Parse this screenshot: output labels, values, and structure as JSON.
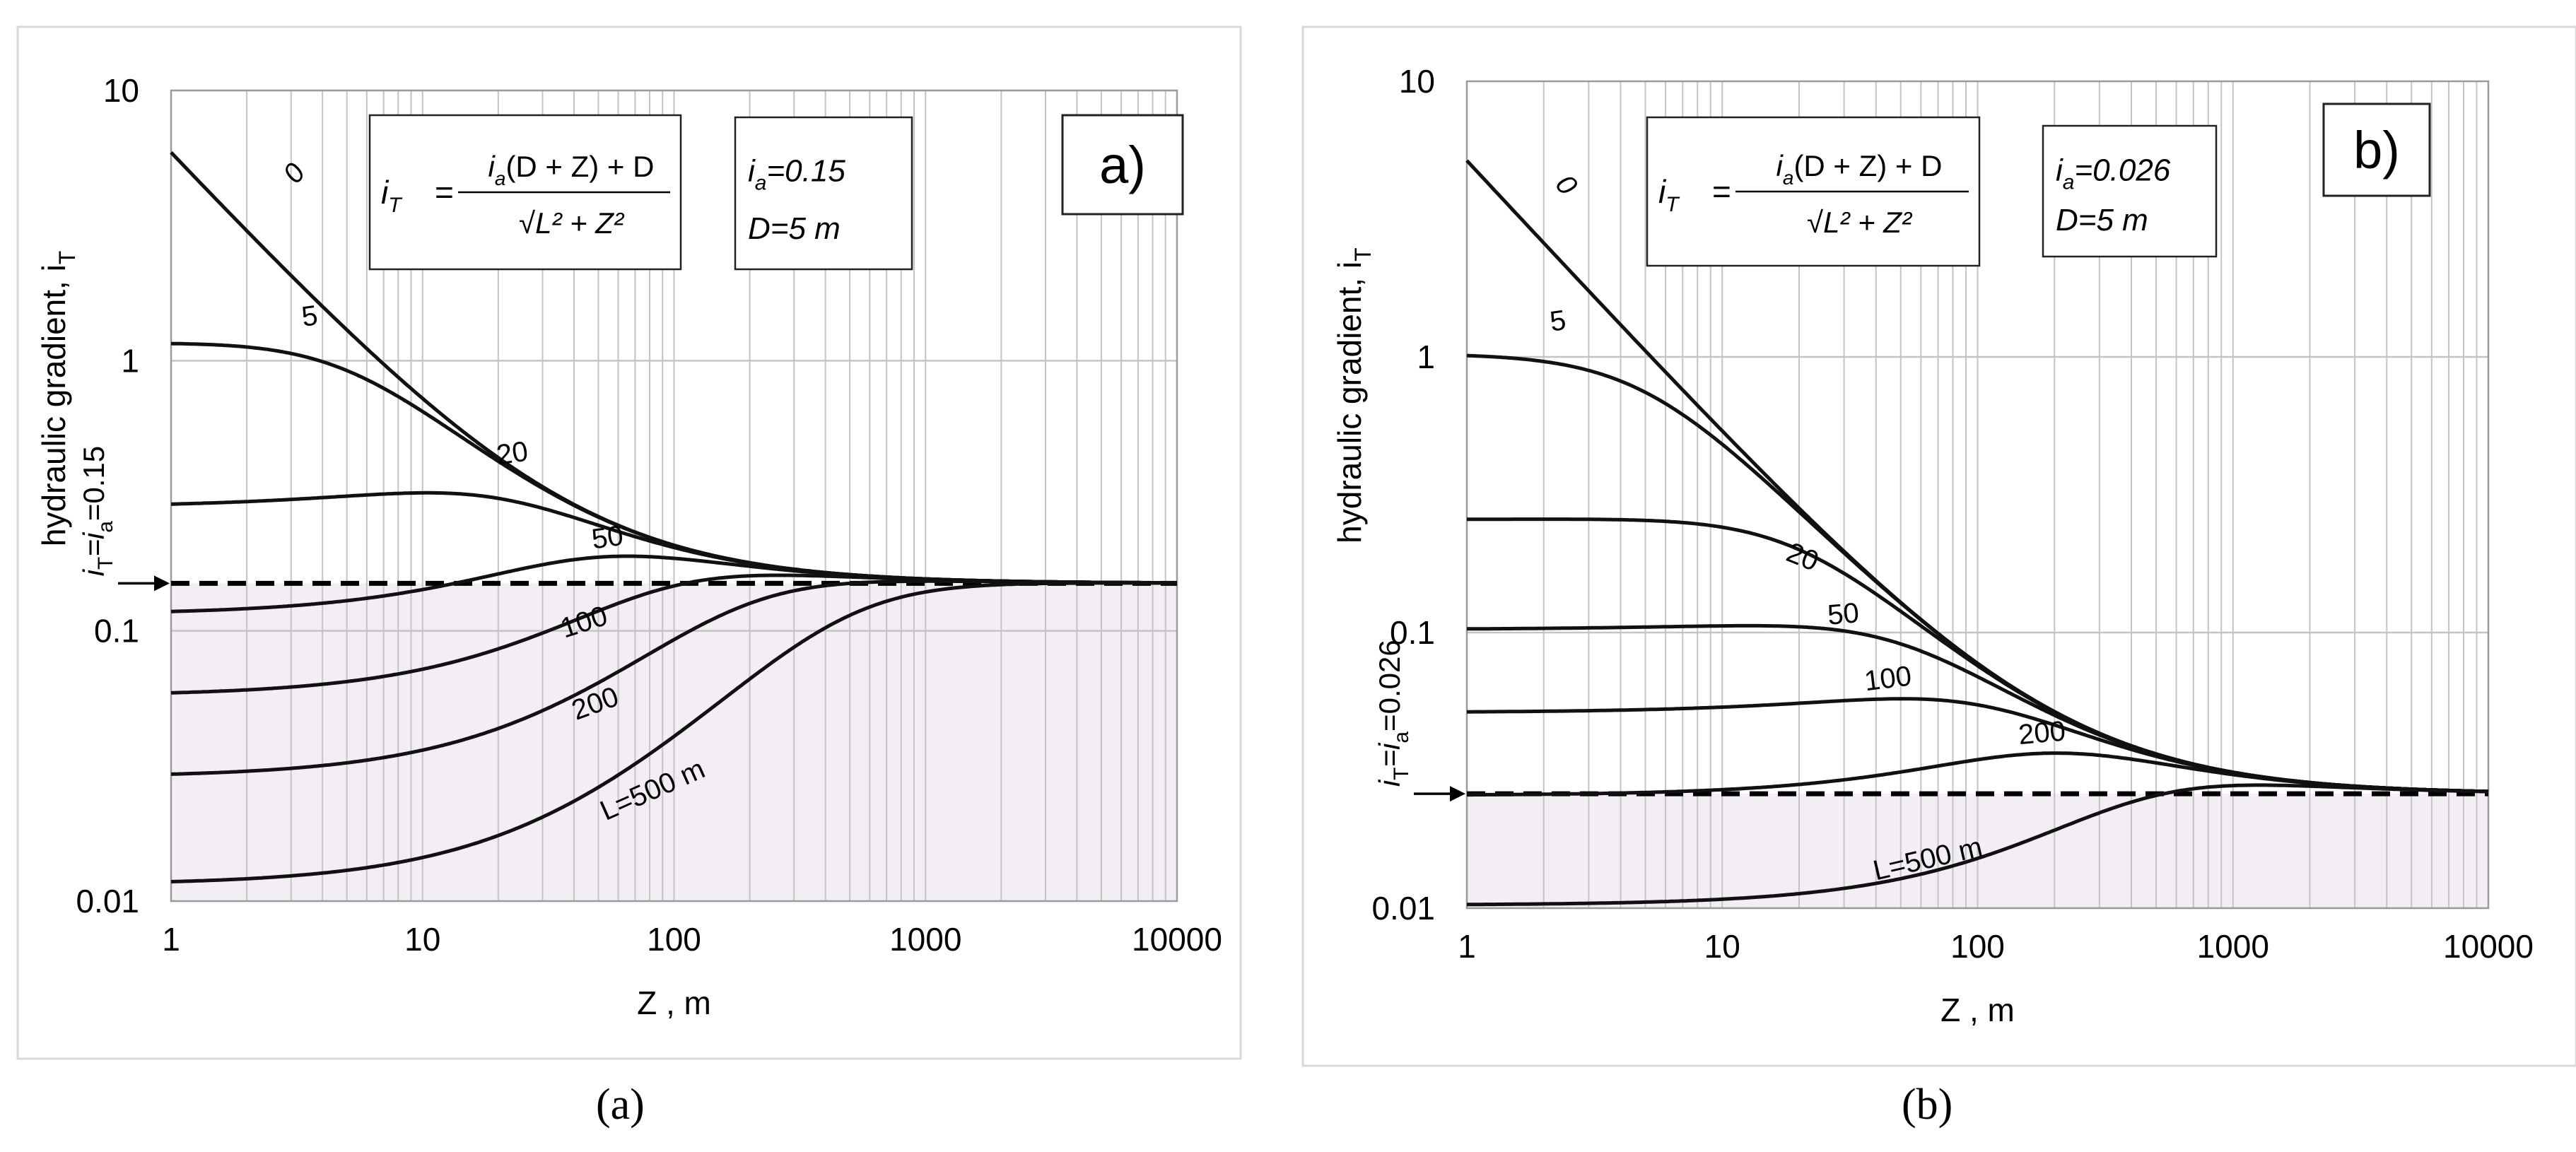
{
  "chart_data": [
    {
      "type": "line",
      "scale": "log-log",
      "panel_label": "a)",
      "caption": "(a)",
      "xlabel": "Z , m",
      "ylabel": "hydraulic gradient, i",
      "ylabel_sub": "T",
      "xlim": [
        1,
        10000
      ],
      "ylim": [
        0.01,
        10
      ],
      "x_ticks": [
        "1",
        "10",
        "100",
        "1000",
        "10000"
      ],
      "y_ticks": [
        "0.01",
        "0.1",
        "1",
        "10"
      ],
      "formula": {
        "lhs": "i",
        "lhs_sub": "T",
        "num_a": "i",
        "num_a_sub": "a",
        "num_rest": "(D + Z) + D",
        "den_prefix": "√",
        "den": "L² + Z²"
      },
      "params": {
        "ia_label": "i",
        "ia_sub": "a",
        "ia_value": "=0.15",
        "D_label": "D=5 m"
      },
      "ia": 0.15,
      "D": 5,
      "reference": {
        "label_prefix": "i",
        "label_sub1": "T",
        "label_mid": "=i",
        "label_sub2": "a",
        "label_value": "=0.15"
      },
      "series": [
        {
          "name": "0",
          "label": "0",
          "L": 0
        },
        {
          "name": "5",
          "label": "5",
          "L": 5
        },
        {
          "name": "20",
          "label": "20",
          "L": 20
        },
        {
          "name": "50",
          "label": "50",
          "L": 50
        },
        {
          "name": "100",
          "label": "100",
          "L": 100
        },
        {
          "name": "200",
          "label": "200",
          "L": 200
        },
        {
          "name": "500",
          "label": "L=500 m",
          "L": 500
        }
      ]
    },
    {
      "type": "line",
      "scale": "log-log",
      "panel_label": "b)",
      "caption": "(b)",
      "xlabel": "Z , m",
      "ylabel": "hydraulic gradient, i",
      "ylabel_sub": "T",
      "xlim": [
        1,
        10000
      ],
      "ylim": [
        0.01,
        10
      ],
      "x_ticks": [
        "1",
        "10",
        "100",
        "1000",
        "10000"
      ],
      "y_ticks": [
        "0.01",
        "0.1",
        "1",
        "10"
      ],
      "formula": {
        "lhs": "i",
        "lhs_sub": "T",
        "num_a": "i",
        "num_a_sub": "a",
        "num_rest": "(D + Z) + D",
        "den_prefix": "√",
        "den": "L² + Z²"
      },
      "params": {
        "ia_label": "i",
        "ia_sub": "a",
        "ia_value": "=0.026",
        "D_label": "D=5 m"
      },
      "ia": 0.026,
      "D": 5,
      "reference": {
        "label_prefix": "i",
        "label_sub1": "T",
        "label_mid": "=i",
        "label_sub2": "a",
        "label_value": "=0.026"
      },
      "series": [
        {
          "name": "0",
          "label": "0",
          "L": 0
        },
        {
          "name": "5",
          "label": "5",
          "L": 5
        },
        {
          "name": "20",
          "label": "20",
          "L": 20
        },
        {
          "name": "50",
          "label": "50",
          "L": 50
        },
        {
          "name": "100",
          "label": "100",
          "L": 100
        },
        {
          "name": "200",
          "label": "200",
          "L": 200
        },
        {
          "name": "500",
          "label": "L=500 m",
          "L": 500
        }
      ]
    }
  ],
  "colors": {
    "curve": "#111111",
    "grid": "#c4c4c4",
    "shade": "#f2eef4",
    "frame": "#d8d8d8"
  }
}
